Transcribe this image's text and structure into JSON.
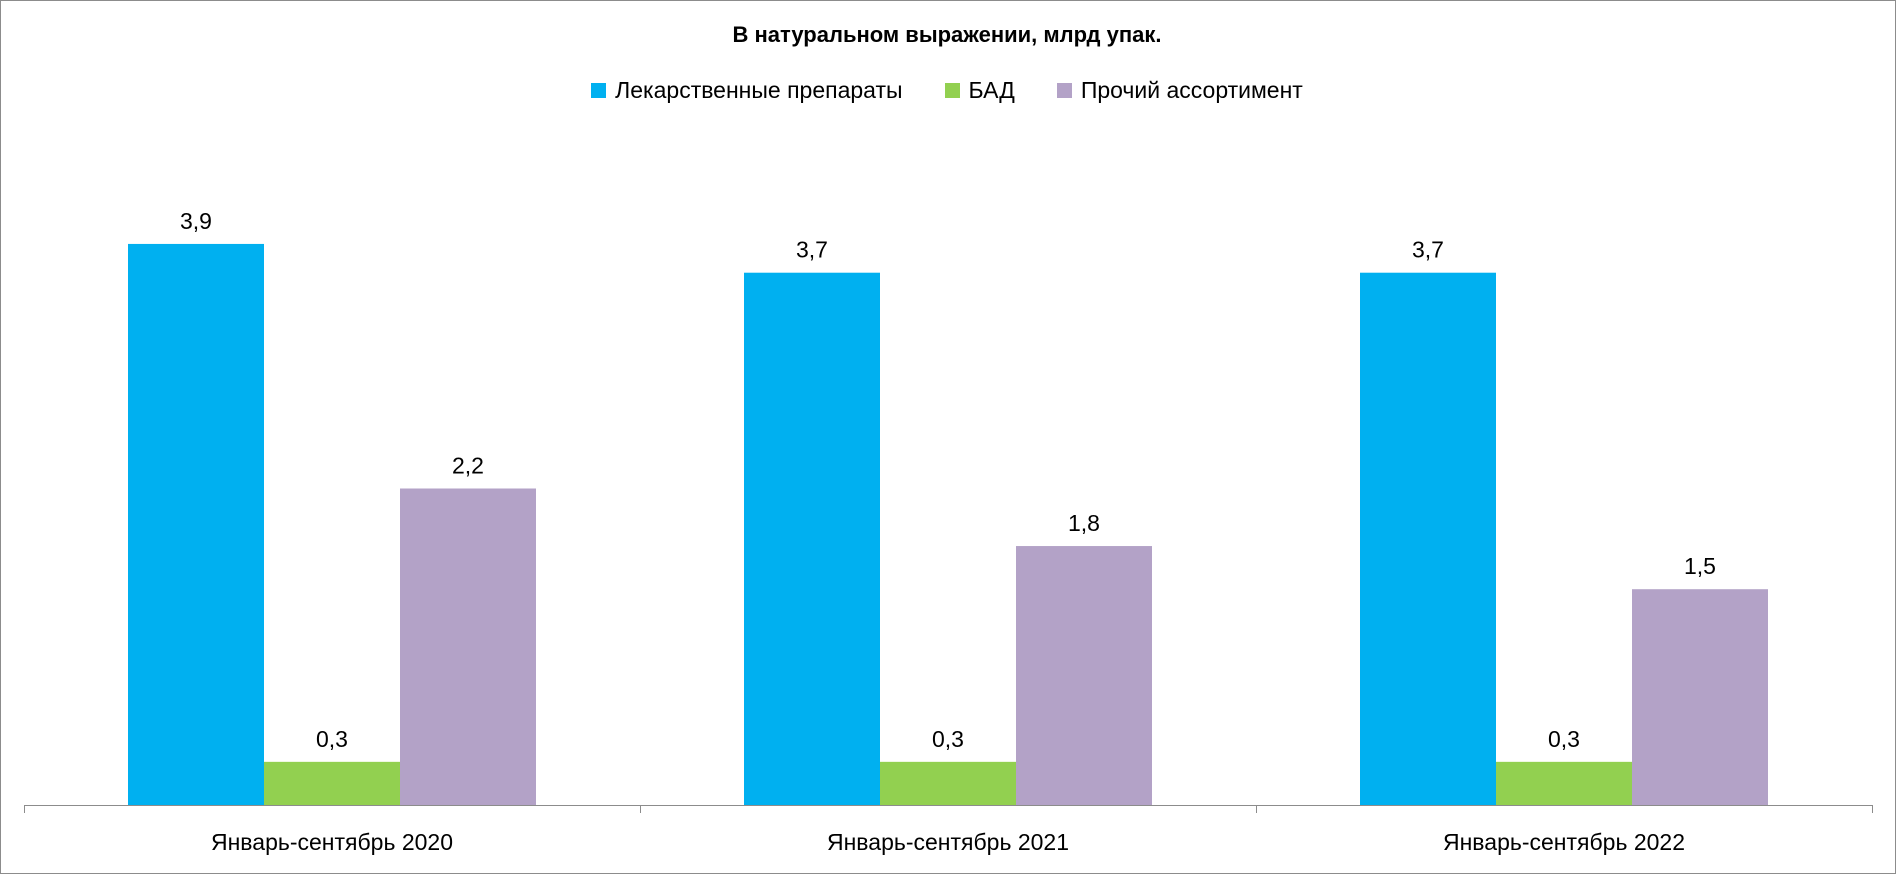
{
  "chart_data": {
    "type": "bar",
    "title": "В натуральном выражении, млрд упак.",
    "categories": [
      "Январь-сентябрь 2020",
      "Январь-сентябрь 2021",
      "Январь-сентябрь 2022"
    ],
    "series": [
      {
        "name": "Лекарственные препараты",
        "color": "#00B0F0",
        "values": [
          3.9,
          3.7,
          3.7
        ],
        "labels": [
          "3,9",
          "3,7",
          "3,7"
        ]
      },
      {
        "name": "БАД",
        "color": "#92D050",
        "values": [
          0.3,
          0.3,
          0.3
        ],
        "labels": [
          "0,3",
          "0,3",
          "0,3"
        ]
      },
      {
        "name": "Прочий ассортимент",
        "color": "#B3A2C7",
        "values": [
          2.2,
          1.8,
          1.5
        ],
        "labels": [
          "2,2",
          "1,8",
          "1,5"
        ]
      }
    ],
    "ylim": [
      0,
      4.4
    ],
    "legend_position": "top",
    "grid": false,
    "data_labels": true
  }
}
